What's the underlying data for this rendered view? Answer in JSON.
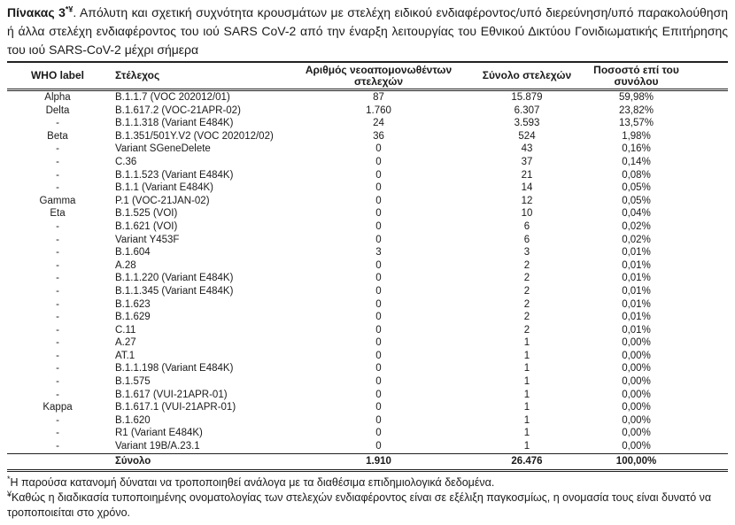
{
  "colors": {
    "text": "#1a1a1a",
    "rule": "#222222",
    "background": "#ffffff"
  },
  "caption": {
    "label": "Πίνακας 3",
    "marker": "*¥",
    "text": ". Απόλυτη και σχετική συχνότητα κρουσμάτων με στελέχη ειδικού ενδιαφέροντος/υπό διερεύνηση/υπό παρακολούθηση ή άλλα στελέχη ενδιαφέροντος του ιού SARS CoV-2 από την έναρξη λειτουργίας του Εθνικού Δικτύου Γονιδιωματικής Επιτήρησης του ιού SARS-CoV-2 μέχρι σήμερα"
  },
  "table": {
    "columns": [
      "WHO label",
      "Στέλεχος",
      "Αριθμός νεοαπομονωθέντων στελεχών",
      "Σύνολο στελεχών",
      "Ποσοστό επί του συνόλου"
    ],
    "rows": [
      [
        "Alpha",
        "B.1.1.7 (VOC 202012/01)",
        "87",
        "15.879",
        "59,98%"
      ],
      [
        "Delta",
        "B.1.617.2 (VOC-21APR-02)",
        "1.760",
        "6.307",
        "23,82%"
      ],
      [
        "-",
        "B.1.1.318 (Variant E484K)",
        "24",
        "3.593",
        "13,57%"
      ],
      [
        "Beta",
        "B.1.351/501Y.V2 (VOC 202012/02)",
        "36",
        "524",
        "1,98%"
      ],
      [
        "-",
        "Variant SGeneDelete",
        "0",
        "43",
        "0,16%"
      ],
      [
        "-",
        "C.36",
        "0",
        "37",
        "0,14%"
      ],
      [
        "-",
        "B.1.1.523 (Variant E484K)",
        "0",
        "21",
        "0,08%"
      ],
      [
        "-",
        "B.1.1 (Variant E484K)",
        "0",
        "14",
        "0,05%"
      ],
      [
        "Gamma",
        "P.1 (VOC-21JAN-02)",
        "0",
        "12",
        "0,05%"
      ],
      [
        "Eta",
        "B.1.525 (VOI)",
        "0",
        "10",
        "0,04%"
      ],
      [
        "-",
        "B.1.621 (VOI)",
        "0",
        "6",
        "0,02%"
      ],
      [
        "-",
        "Variant Y453F",
        "0",
        "6",
        "0,02%"
      ],
      [
        "-",
        "B.1.604",
        "3",
        "3",
        "0,01%"
      ],
      [
        "-",
        "A.28",
        "0",
        "2",
        "0,01%"
      ],
      [
        "-",
        "B.1.1.220 (Variant E484K)",
        "0",
        "2",
        "0,01%"
      ],
      [
        "-",
        "B.1.1.345 (Variant E484K)",
        "0",
        "2",
        "0,01%"
      ],
      [
        "-",
        "B.1.623",
        "0",
        "2",
        "0,01%"
      ],
      [
        "-",
        "B.1.629",
        "0",
        "2",
        "0,01%"
      ],
      [
        "-",
        "C.11",
        "0",
        "2",
        "0,01%"
      ],
      [
        "-",
        "A.27",
        "0",
        "1",
        "0,00%"
      ],
      [
        "-",
        "AT.1",
        "0",
        "1",
        "0,00%"
      ],
      [
        "-",
        "B.1.1.198 (Variant E484K)",
        "0",
        "1",
        "0,00%"
      ],
      [
        "-",
        "B.1.575",
        "0",
        "1",
        "0,00%"
      ],
      [
        "-",
        "B.1.617 (VUI-21APR-01)",
        "0",
        "1",
        "0,00%"
      ],
      [
        "Kappa",
        "B.1.617.1 (VUI-21APR-01)",
        "0",
        "1",
        "0,00%"
      ],
      [
        "-",
        "B.1.620",
        "0",
        "1",
        "0,00%"
      ],
      [
        "-",
        "R1 (Variant E484K)",
        "0",
        "1",
        "0,00%"
      ],
      [
        "-",
        "Variant 19B/A.23.1",
        "0",
        "1",
        "0,00%"
      ]
    ],
    "total": {
      "label": "Σύνολο",
      "new_isolates": "1.910",
      "total_strains": "26.476",
      "percent": "100,00%"
    }
  },
  "footnotes": [
    {
      "marker": "*",
      "text": "Η παρούσα κατανομή δύναται να τροποποιηθεί ανάλογα με τα διαθέσιμα επιδημιολογικά δεδομένα."
    },
    {
      "marker": "¥",
      "text": "Καθώς η διαδικασία τυποποιημένης ονοματολογίας των στελεχών ενδιαφέροντος είναι σε εξέλιξη παγκοσμίως, η ονομασία τους είναι δυνατό να τροποποιείται στο χρόνο."
    }
  ]
}
